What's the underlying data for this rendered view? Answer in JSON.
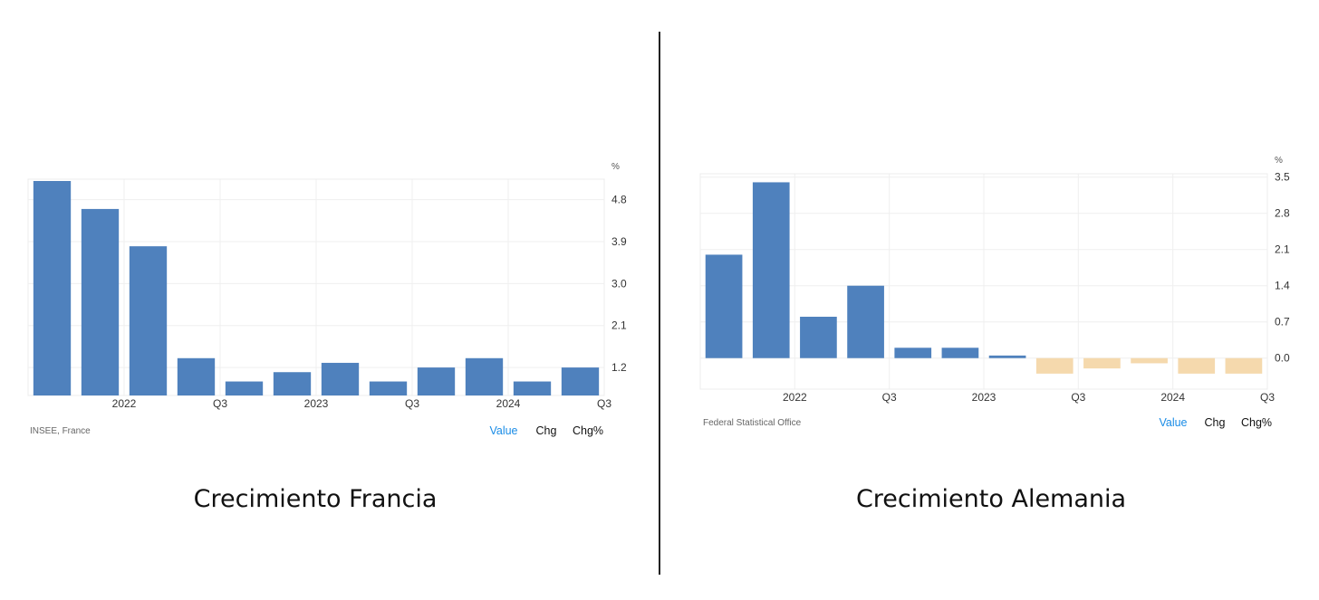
{
  "charts": {
    "france": {
      "caption": "Crecimiento Francia",
      "source": "INSEE, France",
      "unit": "%",
      "toggles": [
        "Value",
        "Chg",
        "Chg%"
      ],
      "active_toggle": "Value"
    },
    "germany": {
      "caption": "Crecimiento Alemania",
      "source": "Federal Statistical Office",
      "unit": "%",
      "toggles": [
        "Value",
        "Chg",
        "Chg%"
      ],
      "active_toggle": "Value"
    }
  },
  "colors": {
    "positive_bar": "#4f81bd",
    "negative_bar": "#f5d9ad",
    "active_toggle": "#1a8ce6"
  },
  "chart_data": [
    {
      "type": "bar",
      "x_labels": [
        "2022",
        "Q3",
        "2023",
        "Q3",
        "2024",
        "Q3"
      ],
      "y_ticks": [
        1.2,
        2.1,
        3.0,
        3.9,
        4.8
      ],
      "ylabel": "%",
      "ylim": [
        0.6,
        5.2
      ],
      "categories": [
        "2021-Q4",
        "2022-Q1",
        "2022-Q2",
        "2022-Q3",
        "2022-Q4",
        "2023-Q1",
        "2023-Q2",
        "2023-Q3",
        "2023-Q4",
        "2024-Q1",
        "2024-Q2",
        "2024-Q3"
      ],
      "values": [
        5.2,
        4.6,
        3.8,
        1.4,
        0.9,
        1.1,
        1.3,
        0.9,
        1.2,
        1.4,
        0.9,
        1.2
      ],
      "grid": true
    },
    {
      "type": "bar",
      "x_labels": [
        "2022",
        "Q3",
        "2023",
        "Q3",
        "2024",
        "Q3"
      ],
      "y_ticks": [
        0.0,
        0.7,
        1.4,
        2.1,
        2.8,
        3.5
      ],
      "ylabel": "%",
      "ylim": [
        -0.6,
        3.6
      ],
      "categories": [
        "2021-Q4",
        "2022-Q1",
        "2022-Q2",
        "2022-Q3",
        "2022-Q4",
        "2023-Q1",
        "2023-Q2",
        "2023-Q3",
        "2023-Q4",
        "2024-Q1",
        "2024-Q2",
        "2024-Q3"
      ],
      "values": [
        2.0,
        3.4,
        0.8,
        1.4,
        0.2,
        0.2,
        0.05,
        -0.3,
        -0.2,
        -0.1,
        -0.3,
        -0.3
      ],
      "grid": true
    }
  ]
}
